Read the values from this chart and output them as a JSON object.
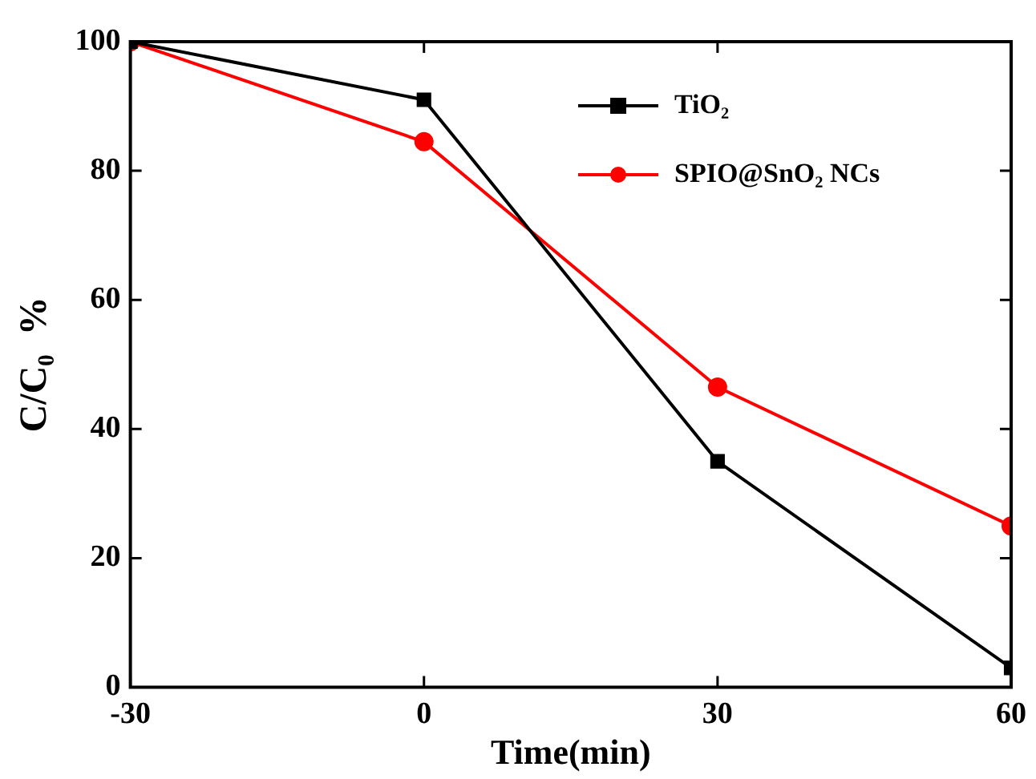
{
  "chart_data": {
    "type": "line",
    "xlabel": "Time(min)",
    "ylabel": "C/C₀  %",
    "x": [
      -30,
      0,
      30,
      60
    ],
    "series": [
      {
        "name": "TiO₂",
        "color": "#000000",
        "marker": "square",
        "values": [
          100,
          91,
          35,
          3
        ]
      },
      {
        "name": "SPIO@SnO₂ NCs",
        "color": "#ff0000",
        "marker": "circle",
        "values": [
          100,
          84.5,
          46.5,
          25
        ]
      }
    ],
    "xlim": [
      -30,
      60
    ],
    "xticks": [
      -30,
      0,
      30,
      60
    ],
    "ylim": [
      0,
      100
    ],
    "yticks": [
      0,
      20,
      40,
      60,
      80,
      100
    ],
    "grid": false,
    "legend": "top right",
    "line_style": "solid"
  }
}
